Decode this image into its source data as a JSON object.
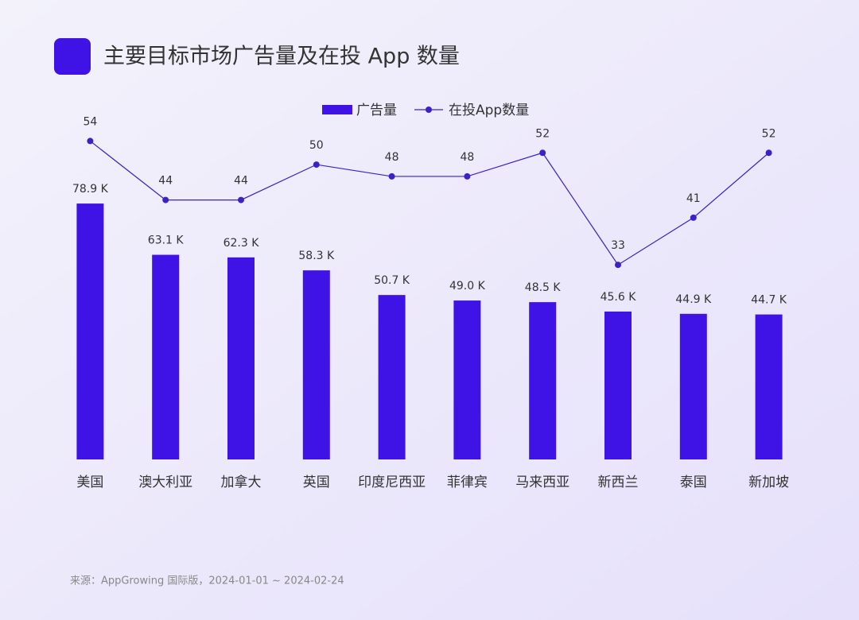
{
  "chart_data": {
    "type": "combo",
    "title": "主要目标市场广告量及在投 App 数量",
    "source": "来源：AppGrowing 国际版，2024-01-01 ~ 2024-02-24",
    "categories": [
      "美国",
      "澳大利亚",
      "加拿大",
      "英国",
      "印度尼西亚",
      "菲律宾",
      "马来西亚",
      "新西兰",
      "泰国",
      "新加坡"
    ],
    "series": [
      {
        "name": "广告量",
        "type": "bar",
        "color": "#3f12e6",
        "values": [
          78.9,
          63.1,
          62.3,
          58.3,
          50.7,
          49.0,
          48.5,
          45.6,
          44.9,
          44.7
        ],
        "value_labels": [
          "78.9 K",
          "63.1 K",
          "62.3 K",
          "58.3 K",
          "50.7 K",
          "49.0 K",
          "48.5 K",
          "45.6 K",
          "44.9 K",
          "44.7 K"
        ]
      },
      {
        "name": "在投App数量",
        "type": "line",
        "axis": "y2",
        "color": "#3a22c9",
        "values": [
          54,
          44,
          44,
          50,
          48,
          48,
          52,
          33,
          41,
          52
        ]
      }
    ],
    "ylim": [
      0,
      100
    ],
    "y2lim": [
      0,
      55
    ],
    "grid": false
  }
}
